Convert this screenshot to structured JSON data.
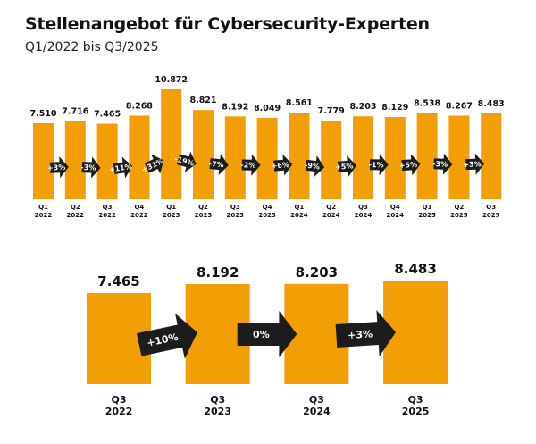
{
  "title": "Stellenangebot für Cybersecurity-Experten",
  "subtitle": "Q1/2022 bis Q3/2025",
  "colors": {
    "bar": "#F29F05",
    "arrow": "#1c1c1c",
    "arrow_text": "#ffffff"
  },
  "chart_data": [
    {
      "type": "bar",
      "categories": [
        [
          "Q1",
          "2022"
        ],
        [
          "Q2",
          "2022"
        ],
        [
          "Q3",
          "2022"
        ],
        [
          "Q4",
          "2022"
        ],
        [
          "Q1",
          "2023"
        ],
        [
          "Q2",
          "2023"
        ],
        [
          "Q3",
          "2023"
        ],
        [
          "Q4",
          "2023"
        ],
        [
          "Q1",
          "2024"
        ],
        [
          "Q2",
          "2024"
        ],
        [
          "Q3",
          "2024"
        ],
        [
          "Q4",
          "2024"
        ],
        [
          "Q1",
          "2025"
        ],
        [
          "Q2",
          "2025"
        ],
        [
          "Q3",
          "2025"
        ]
      ],
      "values": [
        7510,
        7716,
        7465,
        8268,
        10872,
        8821,
        8192,
        8049,
        8561,
        7779,
        8203,
        8129,
        8538,
        8267,
        8483
      ],
      "value_labels": [
        "7.510",
        "7.716",
        "7.465",
        "8.268",
        "10.872",
        "8.821",
        "8.192",
        "8.049",
        "8.561",
        "7.779",
        "8.203",
        "8.129",
        "8.538",
        "8.267",
        "8.483"
      ],
      "changes": [
        "+3%",
        "-3%",
        "+11%",
        "+31%",
        "-19%",
        "-7%",
        "-2%",
        "+6%",
        "-9%",
        "+5%",
        "-1%",
        "+5%",
        "-3%",
        "+3%"
      ],
      "ylim": [
        0,
        10872
      ]
    },
    {
      "type": "bar",
      "categories": [
        [
          "Q3",
          "2022"
        ],
        [
          "Q3",
          "2023"
        ],
        [
          "Q3",
          "2024"
        ],
        [
          "Q3",
          "2025"
        ]
      ],
      "values": [
        7465,
        8192,
        8203,
        8483
      ],
      "value_labels": [
        "7.465",
        "8.192",
        "8.203",
        "8.483"
      ],
      "changes": [
        "+10%",
        "0%",
        "+3%"
      ],
      "ylim": [
        0,
        8483
      ]
    }
  ]
}
